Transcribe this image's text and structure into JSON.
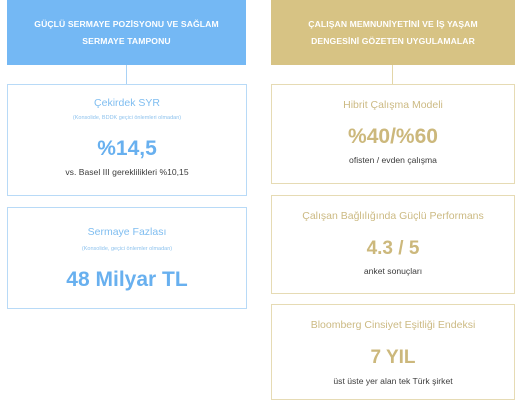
{
  "left_column": {
    "header": {
      "line1": "GÜÇLÜ SERMAYE POZİSYONU VE SAĞLAM",
      "line2": "SERMAYE TAMPONU"
    },
    "cards": [
      {
        "title": "Çekirdek SYR",
        "note": "(Konsolide, BDDK geçici önlemleri olmadan)",
        "value": "%14,5",
        "subtitle": "vs. Basel III gereklilikleri %10,15"
      },
      {
        "title": "Sermaye Fazlası",
        "note": "(Konsolide, geçici önlemler olmadan)",
        "value": "48 Milyar TL"
      }
    ]
  },
  "right_column": {
    "header": {
      "line1": "ÇALIŞAN MEMNUNİYETİNİ VE İŞ YAŞAM",
      "line2": "DENGESİNİ GÖZETEN UYGULAMALAR"
    },
    "cards": [
      {
        "title": "Hibrit Çalışma Modeli",
        "value": "%40/%60",
        "subtitle": "ofisten / evden çalışma"
      },
      {
        "title": "Çalışan Bağlılığında Güçlü Performans",
        "value": "4.3 / 5",
        "subtitle": "anket sonuçları"
      },
      {
        "title": "Bloomberg Cinsiyet Eşitliği Endeksi",
        "value": "7 YIL",
        "subtitle": "üst üste yer alan tek Türk şirket"
      }
    ]
  },
  "colors": {
    "blue_header": "#74b8f4",
    "gold_header": "#d7c384",
    "blue_text": "#68b0ef",
    "gold_text": "#ccb87c"
  }
}
